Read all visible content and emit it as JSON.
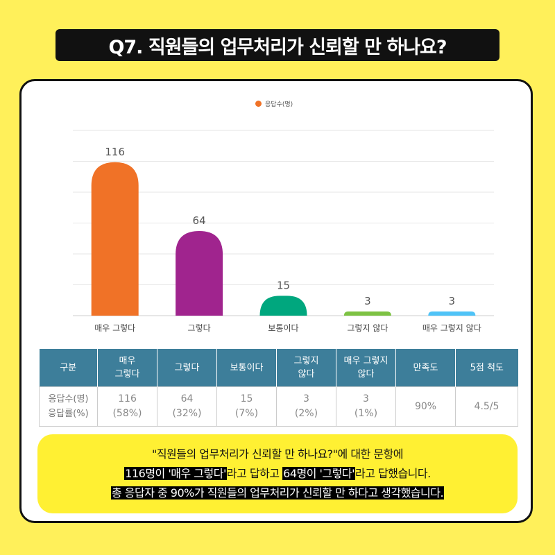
{
  "title": "Q7. 직원들의 업무처리가 신뢰할 만 하나요?",
  "colors": {
    "background": "#FFF05A",
    "banner": "#111111",
    "table_header": "#3D7E9A",
    "summary_bg": "#FFF033"
  },
  "chart_data": {
    "type": "bar",
    "legend": "응답수(명)",
    "legend_color": "#F07227",
    "categories": [
      "매우 그렇다",
      "그렇다",
      "보통이다",
      "그렇지 않다",
      "매우 그렇지 않다"
    ],
    "values": [
      116,
      64,
      15,
      3,
      3
    ],
    "colors": [
      "#F07227",
      "#A0248E",
      "#00A77E",
      "#7DC243",
      "#4FC3F7"
    ],
    "ylim": [
      0,
      140
    ],
    "grid": true
  },
  "table": {
    "headers": [
      "구분",
      "매우\n그렇다",
      "그렇다",
      "보통이다",
      "그렇지\n않다",
      "매우 그렇지\n않다",
      "만족도",
      "5점 척도"
    ],
    "row_label": "응답수(명)\n응답률(%)",
    "cells": [
      "116\n(58%)",
      "64\n(32%)",
      "15\n(7%)",
      "3\n(2%)",
      "3\n(1%)",
      "90%",
      "4.5/5"
    ]
  },
  "summary": {
    "line1": "\"직원들의 업무처리가 신뢰할 만 하나요?\"에 대한 문항에",
    "line2_hl1": "116명이 '매우 그렇다'",
    "line2_mid": "라고 답하고 ",
    "line2_hl2": "64명이 '그렇다'",
    "line2_end": "라고 답했습니다.",
    "line3": "총 응답자 중 90%가 직원들의 업무처리가 신뢰할 만 하다고 생각했습니다."
  }
}
